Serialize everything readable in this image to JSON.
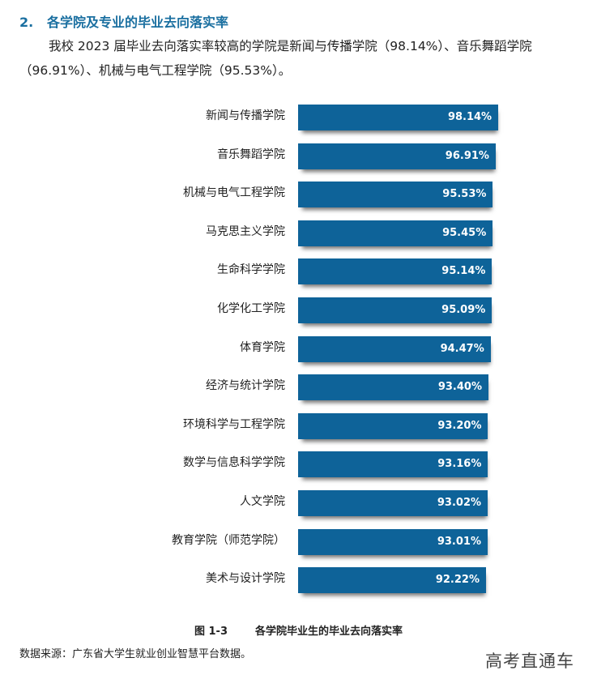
{
  "section": {
    "number": "2.",
    "title": "各学院及专业的毕业去向落实率"
  },
  "paragraph": "我校 2023 届毕业去向落实率较高的学院是新闻与传播学院（98.14%）、音乐舞蹈学院（96.91%）、机械与电气工程学院（95.53%）。",
  "chart_data": {
    "type": "bar",
    "orientation": "horizontal",
    "title": "各学院毕业生的毕业去向落实率",
    "figure_label": "图 1-3",
    "xlabel": "",
    "ylabel": "",
    "grid": false,
    "legend": "none",
    "bar_color": "#0e6399",
    "value_format": "percent",
    "categories": [
      "新闻与传播学院",
      "音乐舞蹈学院",
      "机械与电气工程学院",
      "马克思主义学院",
      "生命科学学院",
      "化学化工学院",
      "体育学院",
      "经济与统计学院",
      "环境科学与工程学院",
      "数学与信息科学学院",
      "人文学院",
      "教育学院（师范学院）",
      "美术与设计学院"
    ],
    "values": [
      98.14,
      96.91,
      95.53,
      95.45,
      95.14,
      95.09,
      94.47,
      93.4,
      93.2,
      93.16,
      93.02,
      93.01,
      92.22
    ],
    "labels": [
      "98.14%",
      "96.91%",
      "95.53%",
      "95.45%",
      "95.14%",
      "95.09%",
      "94.47%",
      "93.40%",
      "93.20%",
      "93.16%",
      "93.02%",
      "93.01%",
      "92.22%"
    ]
  },
  "caption": {
    "figure_label": "图 1-3",
    "title": "各学院毕业生的毕业去向落实率"
  },
  "source": "数据来源：广东省大学生就业创业智慧平台数据。",
  "watermark": "高考直通车"
}
